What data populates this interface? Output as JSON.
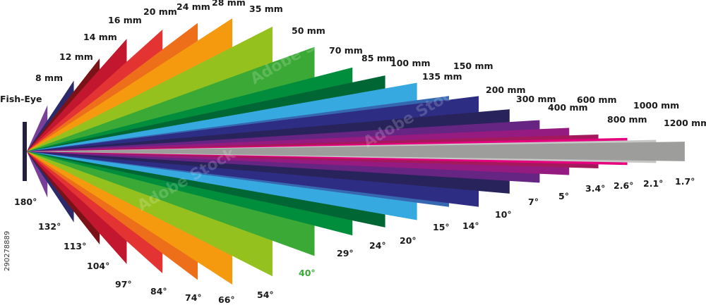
{
  "lenses": [
    {
      "focal": "Fish-Eye",
      "angle": "180°",
      "angle_deg": 180,
      "color": "#23203f"
    },
    {
      "focal": "8 mm",
      "angle": "132°",
      "angle_deg": 132,
      "color": "#7a3f98"
    },
    {
      "focal": "12 mm",
      "angle": "113°",
      "angle_deg": 113,
      "color": "#2c2a6b"
    },
    {
      "focal": "14 mm",
      "angle": "104°",
      "angle_deg": 104,
      "color": "#7b1217"
    },
    {
      "focal": "16 mm",
      "angle": "97°",
      "angle_deg": 97,
      "color": "#c3162f"
    },
    {
      "focal": "20 mm",
      "angle": "84°",
      "angle_deg": 84,
      "color": "#e43333"
    },
    {
      "focal": "24 mm",
      "angle": "74°",
      "angle_deg": 74,
      "color": "#ee6f1a"
    },
    {
      "focal": "28 mm",
      "angle": "66°",
      "angle_deg": 66,
      "color": "#f59a0f"
    },
    {
      "focal": "35 mm",
      "angle": "54°",
      "angle_deg": 54,
      "color": "#95c11f"
    },
    {
      "focal": "50 mm",
      "angle": "40°",
      "angle_deg": 40,
      "color": "#3aa935",
      "highlight": true
    },
    {
      "focal": "70 mm",
      "angle": "29°",
      "angle_deg": 29,
      "color": "#008d3c"
    },
    {
      "focal": "85 mm",
      "angle": "24°",
      "angle_deg": 24,
      "color": "#006734"
    },
    {
      "focal": "100 mm",
      "angle": "20°",
      "angle_deg": 20,
      "color": "#36a9e1"
    },
    {
      "focal": "135 mm",
      "angle": "15°",
      "angle_deg": 15,
      "color": "#3668b1"
    },
    {
      "focal": "150 mm",
      "angle": "14°",
      "angle_deg": 14,
      "color": "#2d2e83"
    },
    {
      "focal": "200 mm",
      "angle": "10°",
      "angle_deg": 10,
      "color": "#29235c"
    },
    {
      "focal": "300 mm",
      "angle": "7°",
      "angle_deg": 7,
      "color": "#662483"
    },
    {
      "focal": "400 mm",
      "angle": "5°",
      "angle_deg": 5,
      "color": "#951b81"
    },
    {
      "focal": "600 mm",
      "angle": "3.4°",
      "angle_deg": 3.4,
      "color": "#a3195b"
    },
    {
      "focal": "800 mm",
      "angle": "2.6°",
      "angle_deg": 2.6,
      "color": "#e6007e"
    },
    {
      "focal": "1000 mm",
      "angle": "2.1°",
      "angle_deg": 2.1,
      "color": "#c6c6c6"
    },
    {
      "focal": "1200 mm",
      "angle": "1.7°",
      "angle_deg": 1.7,
      "color": "#9d9d9c"
    }
  ],
  "side_id": "290278889",
  "watermark": "Adobe Stock"
}
